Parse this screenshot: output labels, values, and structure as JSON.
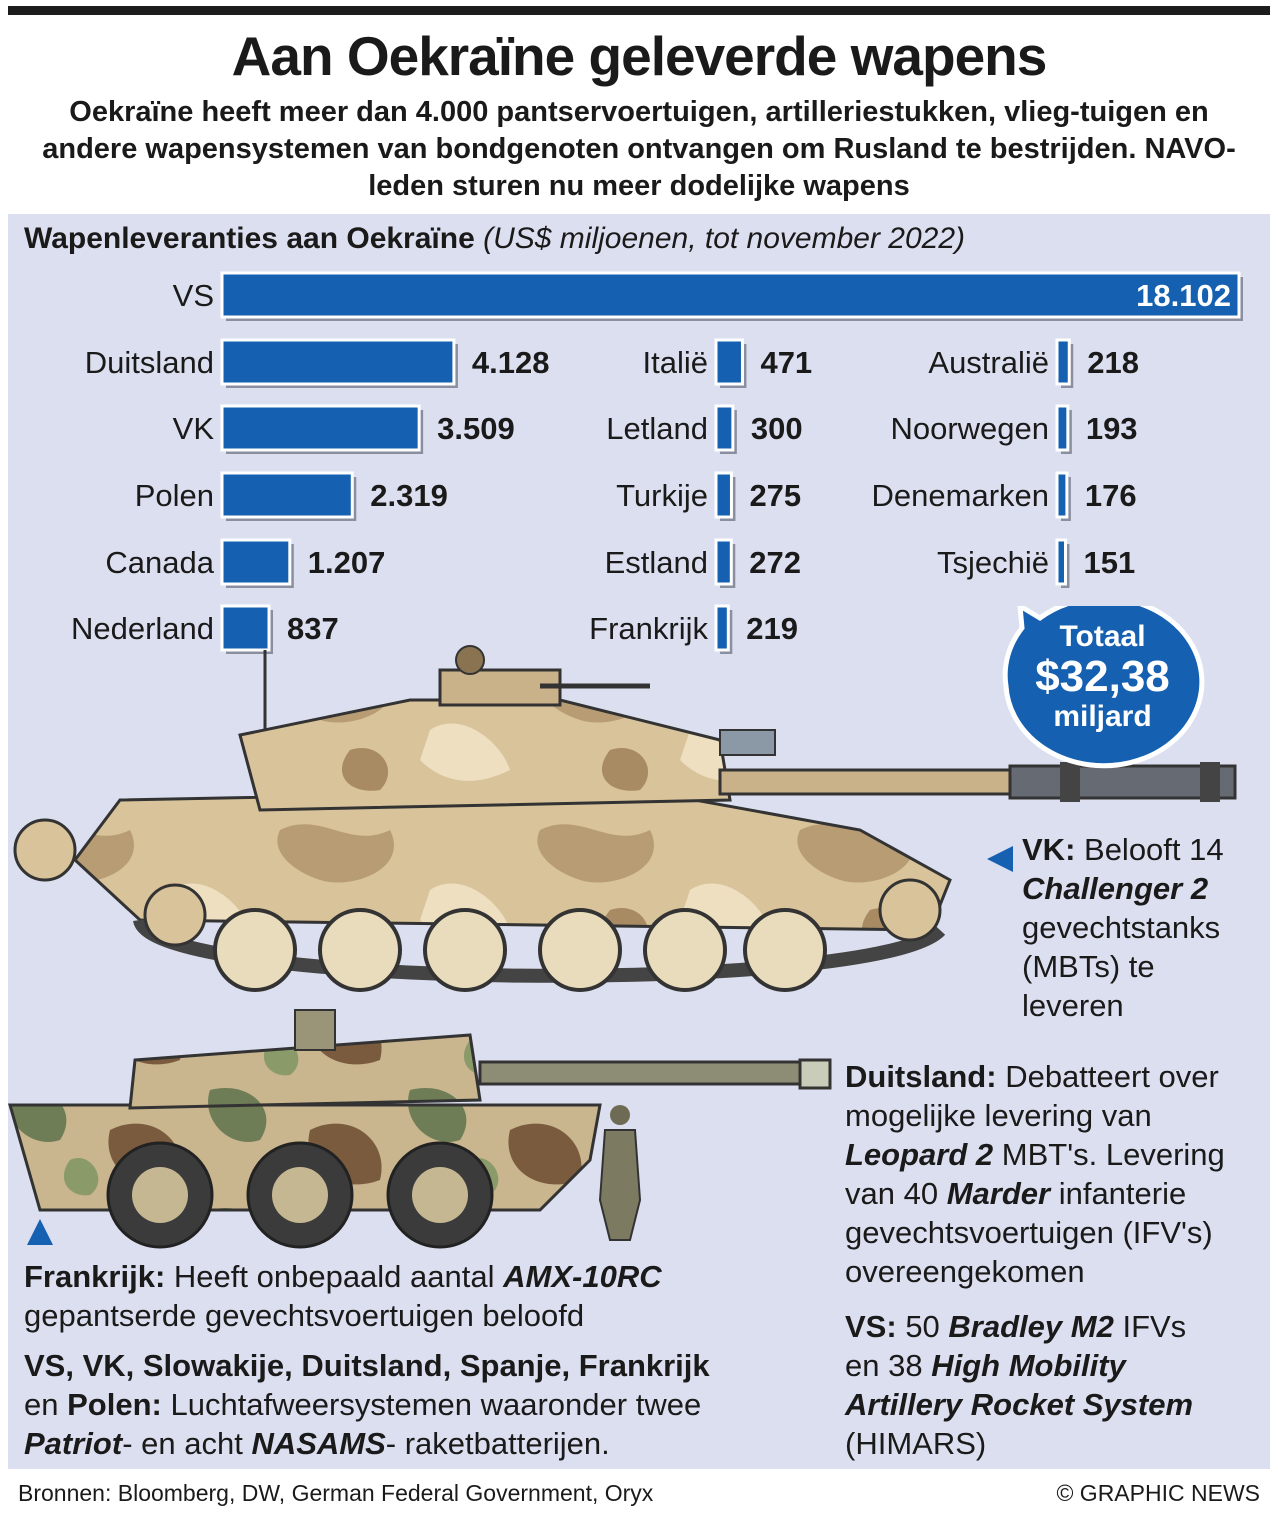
{
  "title": "Aan Oekraïne geleverde wapens",
  "subtitle": "Oekraïne heeft meer dan 4.000 pantservoertuigen, artilleriestukken, vlieg-tuigen en andere wapensystemen van bondgenoten ontvangen om Rusland te bestrijden. NAVO-leden sturen nu meer dodelijke wapens",
  "chart_header": {
    "bold": "Wapenleveranties aan Oekraïne",
    "italic": "(US$ miljoenen, tot november 2022)"
  },
  "chart_data": {
    "type": "bar",
    "orientation": "horizontal",
    "title": "Wapenleveranties aan Oekraïne",
    "unit": "(US$ miljoenen, tot november 2022)",
    "categories": [
      "VS",
      "Duitsland",
      "VK",
      "Polen",
      "Canada",
      "Nederland",
      "Italië",
      "Letland",
      "Turkije",
      "Estland",
      "Frankrijk",
      "Australië",
      "Noorwegen",
      "Denemarken",
      "Tsjechië"
    ],
    "values": [
      18102,
      4128,
      3509,
      2319,
      1207,
      837,
      471,
      300,
      275,
      272,
      219,
      218,
      193,
      176,
      151
    ],
    "value_labels": [
      "18.102",
      "4.128",
      "3.509",
      "2.319",
      "1.207",
      "837",
      "471",
      "300",
      "275",
      "272",
      "219",
      "218",
      "193",
      "176",
      "151"
    ],
    "bar_color": "#1560b0"
  },
  "total": {
    "label": "Totaal",
    "amount": "$32,38",
    "unit": "miljard",
    "color": "#1560b0"
  },
  "notes": {
    "vk": {
      "country": "VK:",
      "t1": "Belooft 14",
      "model": "Challenger 2",
      "t2": "gevechtstanks",
      "t3": "(MBTs) te",
      "t4": "leveren"
    },
    "duitsland": {
      "country": "Duitsland:",
      "t1": "Debatteert over",
      "t2": "mogelijke levering van",
      "model1": "Leopard 2",
      "t3": "MBT's. Levering",
      "t4": "van 40",
      "model2": "Marder",
      "t5": "infanterie",
      "t6": "gevechtsvoertuigen (IFV's)",
      "t7": "overeengekomen"
    },
    "vs": {
      "country": "VS:",
      "t1": "50",
      "model1": "Bradley M2",
      "t2": "IFVs",
      "t3": "en 38",
      "model2": "High Mobility",
      "model3": "Artillery Rocket System",
      "t4": "(HIMARS)"
    },
    "frankrijk": {
      "country": "Frankrijk:",
      "t1": "Heeft onbepaald aantal",
      "model": "AMX-10RC",
      "t2": "gepantserde gevechtsvoertuigen beloofd"
    },
    "luchtafweer": {
      "countries1": "VS, VK, Slowakije, Duitsland, Spanje, Frankrijk",
      "en": "en",
      "countries2": "Polen:",
      "t1": "Luchtafweersystemen waaronder twee",
      "model1": "Patriot",
      "t2": "- en acht",
      "model2": "NASAMS",
      "t3": "- raketbatterijen."
    }
  },
  "footer": {
    "sources": "Bronnen: Bloomberg, DW, German Federal Government, Oryx",
    "credit": "© GRAPHIC NEWS"
  }
}
